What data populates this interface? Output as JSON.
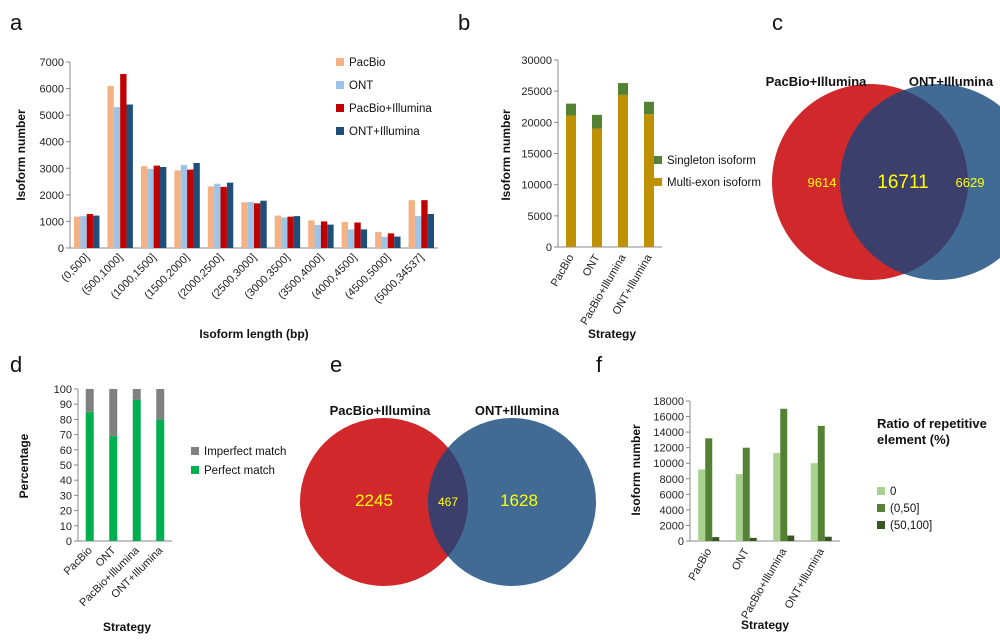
{
  "colors": {
    "pacbio": "#F4B183",
    "ont": "#9DC3E6",
    "pacbio_illumina": "#C00000",
    "ont_illumina": "#1F4E79",
    "singleton": "#548235",
    "multiexon": "#BF9000",
    "imperfect": "#808080",
    "perfect": "#00B050",
    "rep0": "#A9D18E",
    "rep050": "#548235",
    "rep50100": "#375623",
    "venn_left": "#D0282B",
    "venn_right": "#416B95",
    "venn_overlap": "#3C3F6B",
    "venn_text": "#FFFF00",
    "axis": "#888888"
  },
  "chart_data": [
    {
      "panel": "a",
      "type": "bar",
      "xlabel": "Isoform length (bp)",
      "ylabel": "Isoform number",
      "ylim": [
        0,
        7000
      ],
      "yticks": [
        0,
        1000,
        2000,
        3000,
        4000,
        5000,
        6000,
        7000
      ],
      "categories": [
        "(0,500]",
        "(500,1000]",
        "(1000,1500]",
        "(1500,2000]",
        "(2000,2500]",
        "(2500,3000]",
        "(3000,3500]",
        "(3500,4000]",
        "(4000,4500]",
        "(4500,5000]",
        "(5000,34537]"
      ],
      "series": [
        {
          "name": "PacBio",
          "color_key": "pacbio",
          "values": [
            1180,
            6100,
            3080,
            2920,
            2320,
            1720,
            1220,
            1040,
            980,
            600,
            1800
          ]
        },
        {
          "name": "ONT",
          "color_key": "ont",
          "values": [
            1200,
            5300,
            2980,
            3120,
            2420,
            1730,
            1150,
            870,
            700,
            420,
            1200
          ]
        },
        {
          "name": "PacBio+Illumina",
          "color_key": "pacbio_illumina",
          "values": [
            1280,
            6550,
            3100,
            2950,
            2300,
            1680,
            1180,
            1000,
            960,
            550,
            1800
          ]
        },
        {
          "name": "ONT+Illumina",
          "color_key": "ont_illumina",
          "values": [
            1220,
            5400,
            3050,
            3200,
            2460,
            1780,
            1200,
            880,
            700,
            430,
            1280
          ]
        }
      ],
      "legend": "right"
    },
    {
      "panel": "b",
      "type": "bar",
      "xlabel": "Strategy",
      "ylabel": "Isoform number",
      "ylim": [
        0,
        30000
      ],
      "yticks": [
        0,
        5000,
        10000,
        15000,
        20000,
        25000,
        30000
      ],
      "categories": [
        "PacBio",
        "ONT",
        "PacBio+Illumina",
        "ONT+Illumina"
      ],
      "stacked": true,
      "series": [
        {
          "name": "Multi-exon isoform",
          "color_key": "multiexon",
          "values": [
            21100,
            19000,
            24400,
            21300
          ]
        },
        {
          "name": "Singleton isoform",
          "color_key": "singleton",
          "values": [
            1900,
            2200,
            1900,
            2000
          ]
        }
      ],
      "legend": "right"
    },
    {
      "panel": "c",
      "type": "venn",
      "sets": [
        "PacBio+Illumina",
        "ONT+Illumina"
      ],
      "values": {
        "left_only": 9614,
        "both": 16711,
        "right_only": 6629
      }
    },
    {
      "panel": "d",
      "type": "bar",
      "xlabel": "Strategy",
      "ylabel": "Percentage",
      "ylim": [
        0,
        100
      ],
      "yticks": [
        0,
        10,
        20,
        30,
        40,
        50,
        60,
        70,
        80,
        90,
        100
      ],
      "categories": [
        "PacBio",
        "ONT",
        "PacBio+Illumina",
        "ONT+Illumina"
      ],
      "stacked": true,
      "series": [
        {
          "name": "Perfect match",
          "color_key": "perfect",
          "values": [
            85,
            69,
            93,
            80
          ]
        },
        {
          "name": "Imperfect match",
          "color_key": "imperfect",
          "values": [
            15,
            31,
            7,
            20
          ]
        }
      ],
      "legend": "right"
    },
    {
      "panel": "e",
      "type": "venn",
      "sets": [
        "PacBio+Illumina",
        "ONT+Illumina"
      ],
      "values": {
        "left_only": 2245,
        "both": 467,
        "right_only": 1628
      }
    },
    {
      "panel": "f",
      "type": "bar",
      "xlabel": "Strategy",
      "ylabel": "Isoform number",
      "ylim": [
        0,
        18000
      ],
      "yticks": [
        0,
        2000,
        4000,
        6000,
        8000,
        10000,
        12000,
        14000,
        16000,
        18000
      ],
      "categories": [
        "PacBio",
        "ONT",
        "PacBio+Illumina",
        "ONT+Illumina"
      ],
      "legend_title": "Ratio of repetitive element (%)",
      "series": [
        {
          "name": "0",
          "color_key": "rep0",
          "values": [
            9200,
            8600,
            11300,
            10000
          ]
        },
        {
          "name": "(0,50]",
          "color_key": "rep050",
          "values": [
            13200,
            12000,
            17000,
            14800
          ]
        },
        {
          "name": "(50,100]",
          "color_key": "rep50100",
          "values": [
            500,
            400,
            700,
            550
          ]
        }
      ],
      "legend": "right"
    }
  ]
}
